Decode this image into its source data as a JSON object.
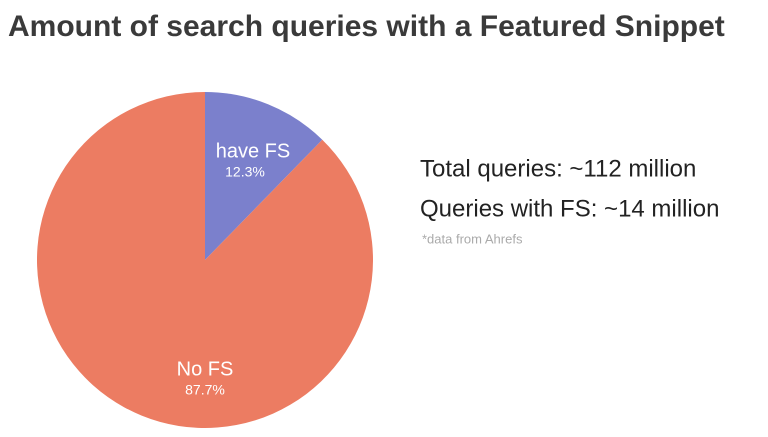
{
  "chart_data": {
    "type": "pie",
    "title": "Amount of search queries with a Featured Snippet",
    "categories": [
      "have FS",
      "No FS"
    ],
    "values": [
      12.3,
      87.7
    ],
    "value_labels": [
      "12.3%",
      "87.7%"
    ],
    "colors": [
      "#7b80cc",
      "#ec7c62"
    ],
    "annotations": [
      "Total queries: ~112 million",
      "Queries with FS: ~14 million",
      "*data from Ahrefs"
    ]
  }
}
